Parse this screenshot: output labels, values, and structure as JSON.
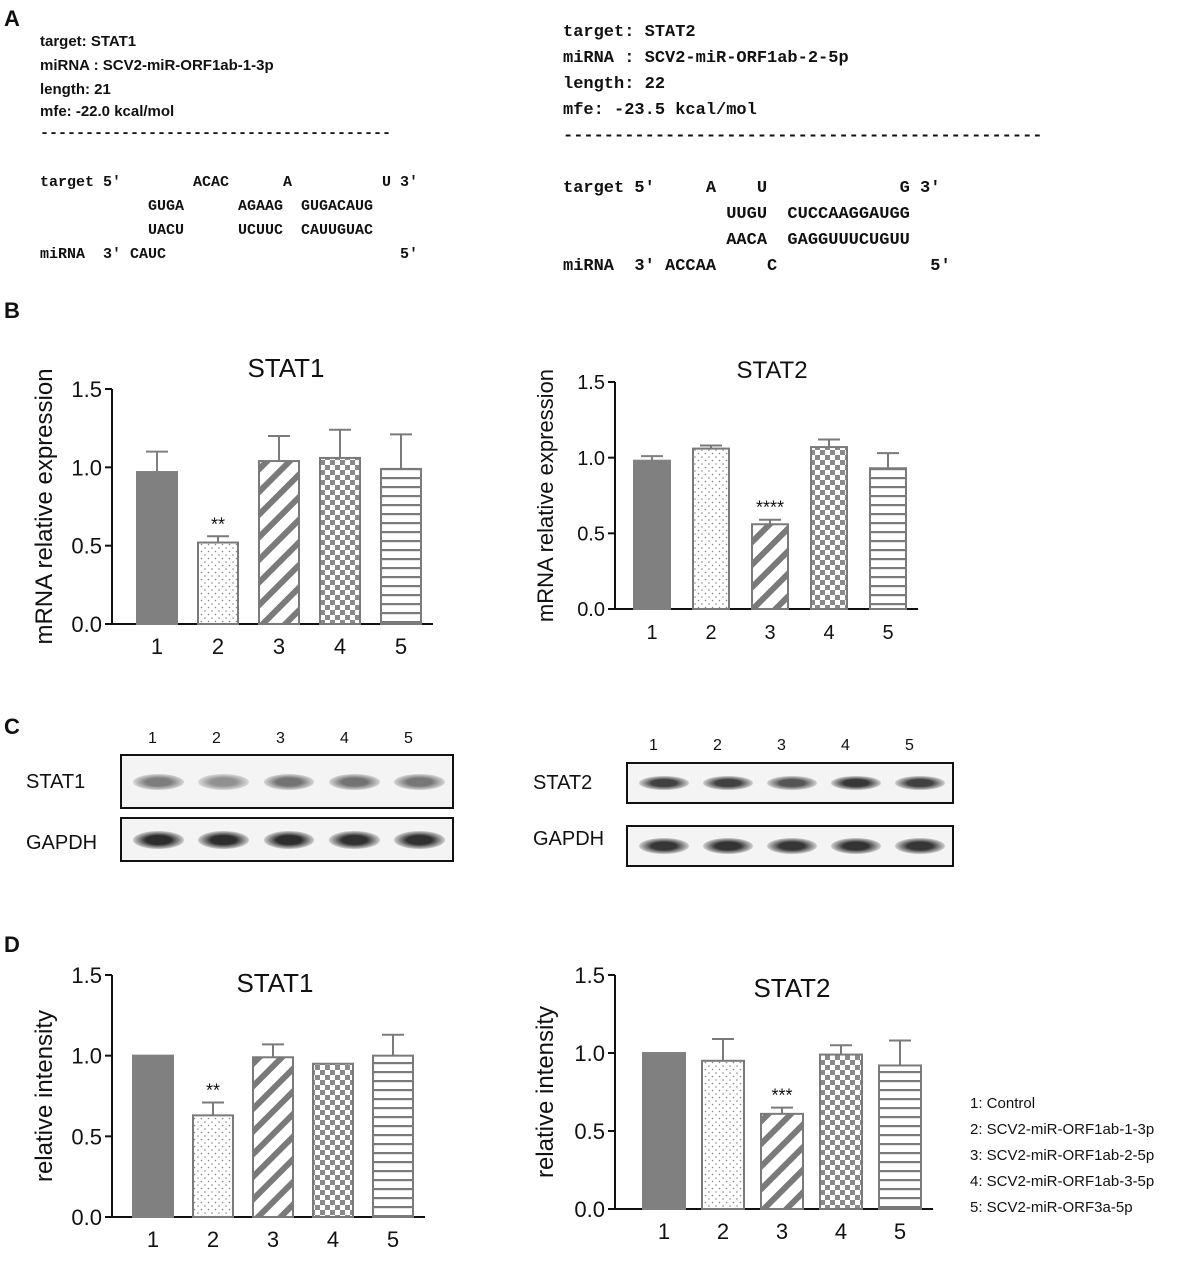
{
  "panel_letters": {
    "a": "A",
    "b": "B",
    "c": "C",
    "d": "D"
  },
  "panel_a": {
    "left": {
      "target_line": "target: STAT1",
      "mirna_line": "miRNA : SCV2-miR-ORF1ab-1-3p",
      "length_line": "length: 21",
      "mfe_line": "mfe: -22.0 kcal/mol",
      "dashes": "---------------------------------------",
      "row1": "target 5'        ACAC      A          U 3'",
      "row2": "            GUGA      AGAAG  GUGACAUG",
      "row3": "            UACU      UCUUC  CAUUGUAC",
      "row4": "miRNA  3' CAUC                          5'"
    },
    "right": {
      "target_line": "target: STAT2",
      "mirna_line": "miRNA : SCV2-miR-ORF1ab-2-5p",
      "length_line": "length: 22",
      "mfe_line": "mfe: -23.5 kcal/mol",
      "dashes": "-----------------------------------------------",
      "row1": "target 5'     A    U             G 3'",
      "row2": "                UUGU  CUCCAAGGAUGG",
      "row3": "                AACA  GAGGUUUCUGUU",
      "row4": "miRNA  3' ACCAA     C               5'"
    }
  },
  "chart_data": [
    {
      "id": "B-STAT1",
      "type": "bar",
      "title": "STAT1",
      "ylabel": "mRNA relative expression",
      "categories": [
        "1",
        "2",
        "3",
        "4",
        "5"
      ],
      "values": [
        0.97,
        0.52,
        1.04,
        1.06,
        0.99
      ],
      "errors": [
        0.13,
        0.04,
        0.16,
        0.18,
        0.22
      ],
      "significance": [
        "",
        "**",
        "",
        "",
        ""
      ],
      "ylim": [
        0,
        1.5
      ],
      "yticks": [
        "0.0",
        "0.5",
        "1.0",
        "1.5"
      ]
    },
    {
      "id": "B-STAT2",
      "type": "bar",
      "title": "STAT2",
      "ylabel": "mRNA relative expression",
      "categories": [
        "1",
        "2",
        "3",
        "4",
        "5"
      ],
      "values": [
        0.98,
        1.06,
        0.56,
        1.07,
        0.93
      ],
      "errors": [
        0.03,
        0.02,
        0.03,
        0.05,
        0.1
      ],
      "significance": [
        "",
        "",
        "****",
        "",
        ""
      ],
      "ylim": [
        0,
        1.5
      ],
      "yticks": [
        "0.0",
        "0.5",
        "1.0",
        "1.5"
      ]
    },
    {
      "id": "D-STAT1",
      "type": "bar",
      "title": "STAT1",
      "ylabel": "relative intensity",
      "categories": [
        "1",
        "2",
        "3",
        "4",
        "5"
      ],
      "values": [
        1.0,
        0.63,
        0.99,
        0.95,
        1.0
      ],
      "errors": [
        0.0,
        0.08,
        0.08,
        0.0,
        0.13
      ],
      "significance": [
        "",
        "**",
        "",
        "",
        ""
      ],
      "ylim": [
        0,
        1.5
      ],
      "yticks": [
        "0.0",
        "0.5",
        "1.0",
        "1.5"
      ]
    },
    {
      "id": "D-STAT2",
      "type": "bar",
      "title": "STAT2",
      "ylabel": "relative intensity",
      "categories": [
        "1",
        "2",
        "3",
        "4",
        "5"
      ],
      "values": [
        1.0,
        0.95,
        0.61,
        0.99,
        0.92
      ],
      "errors": [
        0.0,
        0.14,
        0.04,
        0.06,
        0.16
      ],
      "significance": [
        "",
        "",
        "***",
        "",
        ""
      ],
      "ylim": [
        0,
        1.5
      ],
      "yticks": [
        "0.0",
        "0.5",
        "1.0",
        "1.5"
      ]
    }
  ],
  "bar_styles": [
    "solid-gray",
    "dots",
    "diagonal",
    "checker",
    "horizontal"
  ],
  "colors": {
    "solid": "#808080",
    "stroke": "#7a7a7a",
    "axis": "#111111"
  },
  "panel_c": {
    "left": {
      "lanes": [
        "1",
        "2",
        "3",
        "4",
        "5"
      ],
      "top_label": "STAT1",
      "bottom_label": "GAPDH",
      "top_intensity": [
        0.55,
        0.45,
        0.6,
        0.6,
        0.58
      ],
      "bottom_intensity": [
        0.95,
        0.95,
        0.95,
        0.93,
        0.93
      ]
    },
    "right": {
      "lanes": [
        "1",
        "2",
        "3",
        "4",
        "5"
      ],
      "top_label": "STAT2",
      "bottom_label": "GAPDH",
      "top_intensity": [
        0.85,
        0.85,
        0.75,
        0.9,
        0.85
      ],
      "bottom_intensity": [
        0.9,
        0.92,
        0.9,
        0.92,
        0.9
      ]
    }
  },
  "legend": [
    "1:  Control",
    "2:  SCV2-miR-ORF1ab-1-3p",
    "3:  SCV2-miR-ORF1ab-2-5p",
    "4:  SCV2-miR-ORF1ab-3-5p",
    "5:  SCV2-miR-ORF3a-5p"
  ]
}
